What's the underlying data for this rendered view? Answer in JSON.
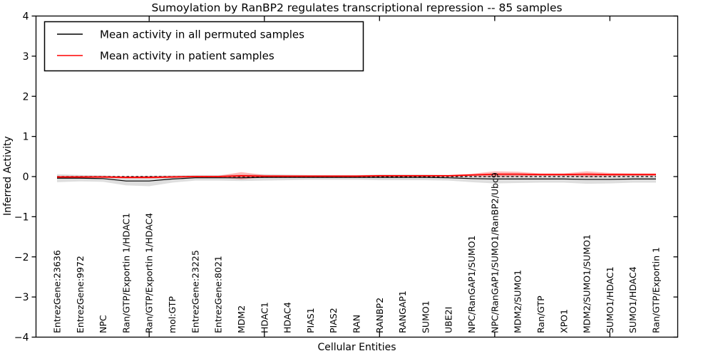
{
  "title": "Sumoylation by RanBP2 regulates transcriptional repression -- 85 samples",
  "chart_data": {
    "type": "line",
    "title": "Sumoylation by RanBP2 regulates transcriptional repression -- 85 samples",
    "xlabel": "Cellular Entities",
    "ylabel": "Inferred Activity",
    "ylim": [
      -4,
      4
    ],
    "yticks": [
      4,
      3,
      2,
      1,
      0,
      -1,
      -2,
      -3,
      -4
    ],
    "xtick_positions": [
      5,
      10,
      15,
      20,
      25
    ],
    "grid": false,
    "legend_position": "upper-left",
    "background_color": "#ffffff",
    "axis_color": "#000000",
    "categories": [
      "EntrezGene:23636",
      "EntrezGene:9972",
      "NPC",
      "Ran/GTP/Exportin 1/HDAC1",
      "Ran/GTP/Exportin 1/HDAC4",
      "mol:GTP",
      "EntrezGene:23225",
      "EntrezGene:8021",
      "MDM2",
      "HDAC1",
      "HDAC4",
      "PIAS1",
      "PIAS2",
      "RAN",
      "RANBP2",
      "RANGAP1",
      "SUMO1",
      "UBE2I",
      "NPC/RanGAP1/SUMO1",
      "NPC/RanGAP1/SUMO1/RanBP2/Ubc9",
      "MDM2/SUMO1",
      "Ran/GTP",
      "XPO1",
      "MDM2/SUMO1/SUMO1",
      "SUMO1/HDAC1",
      "SUMO1/HDAC4",
      "Ran/GTP/Exportin 1"
    ],
    "zero_line": {
      "y": 0,
      "color": "#000000",
      "style": "dashed"
    },
    "series": [
      {
        "name": "Mean activity in all permuted samples",
        "color": "#000000",
        "line_style": "solid",
        "values": [
          -0.04,
          -0.04,
          -0.05,
          -0.11,
          -0.11,
          -0.06,
          -0.03,
          -0.03,
          -0.03,
          -0.02,
          -0.02,
          -0.02,
          -0.02,
          -0.02,
          -0.02,
          -0.02,
          -0.02,
          -0.03,
          -0.05,
          -0.06,
          -0.06,
          -0.06,
          -0.06,
          -0.07,
          -0.07,
          -0.06,
          -0.06
        ],
        "band_halfwidth": [
          0.1,
          0.08,
          0.08,
          0.11,
          0.13,
          0.09,
          0.07,
          0.07,
          0.08,
          0.08,
          0.07,
          0.06,
          0.06,
          0.06,
          0.07,
          0.07,
          0.07,
          0.07,
          0.09,
          0.11,
          0.1,
          0.09,
          0.09,
          0.11,
          0.1,
          0.09,
          0.09
        ],
        "band_color": "rgba(0,0,0,0.13)"
      },
      {
        "name": "Mean activity in patient samples",
        "color": "#ff0000",
        "line_style": "solid",
        "values": [
          -0.01,
          -0.01,
          -0.01,
          -0.02,
          -0.02,
          -0.01,
          0.0,
          0.0,
          0.02,
          0.01,
          0.01,
          0.01,
          0.01,
          0.01,
          0.02,
          0.02,
          0.02,
          0.02,
          0.04,
          0.06,
          0.06,
          0.05,
          0.05,
          0.06,
          0.05,
          0.05,
          0.05
        ],
        "band_halfwidth": [
          0.02,
          0.02,
          0.02,
          0.03,
          0.03,
          0.02,
          0.02,
          0.02,
          0.09,
          0.03,
          0.02,
          0.02,
          0.02,
          0.02,
          0.02,
          0.02,
          0.02,
          0.02,
          0.03,
          0.07,
          0.06,
          0.03,
          0.03,
          0.07,
          0.04,
          0.03,
          0.03
        ],
        "band_color": "rgba(255,0,0,0.27)"
      }
    ]
  }
}
